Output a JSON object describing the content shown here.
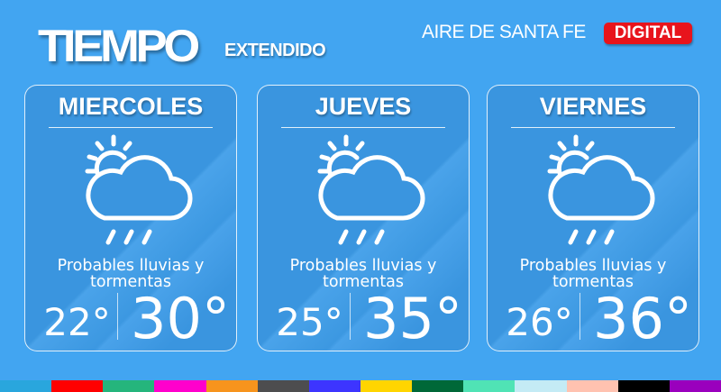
{
  "header": {
    "title": "TIEMPO",
    "subtitle": "EXTENDIDO",
    "brand": "AIRE DE SANTA FE",
    "badge": "DIGITAL"
  },
  "days": [
    {
      "name": "MIERCOLES",
      "icon": "sun-cloud-rain-icon",
      "description": "Probables lluvias y tormentas",
      "min": "22°",
      "max": "30°"
    },
    {
      "name": "JUEVES",
      "icon": "sun-cloud-rain-icon",
      "description": "Probables lluvias y tormentas",
      "min": "25°",
      "max": "35°"
    },
    {
      "name": "VIERNES",
      "icon": "sun-cloud-rain-icon",
      "description": "Probables lluvias y tormentas",
      "min": "26°",
      "max": "36°"
    }
  ],
  "colors": {
    "background": "#42a5f1",
    "badge": "#e8141c",
    "stripes": [
      "#29a6dd",
      "#ff0000",
      "#25b57c",
      "#ff00cc",
      "#f7941d",
      "#4d4d4f",
      "#3d35ff",
      "#ffd500",
      "#006838",
      "#50e3b5",
      "#c4ebf5",
      "#ffc2b0",
      "#000000",
      "#9a00bd"
    ]
  }
}
